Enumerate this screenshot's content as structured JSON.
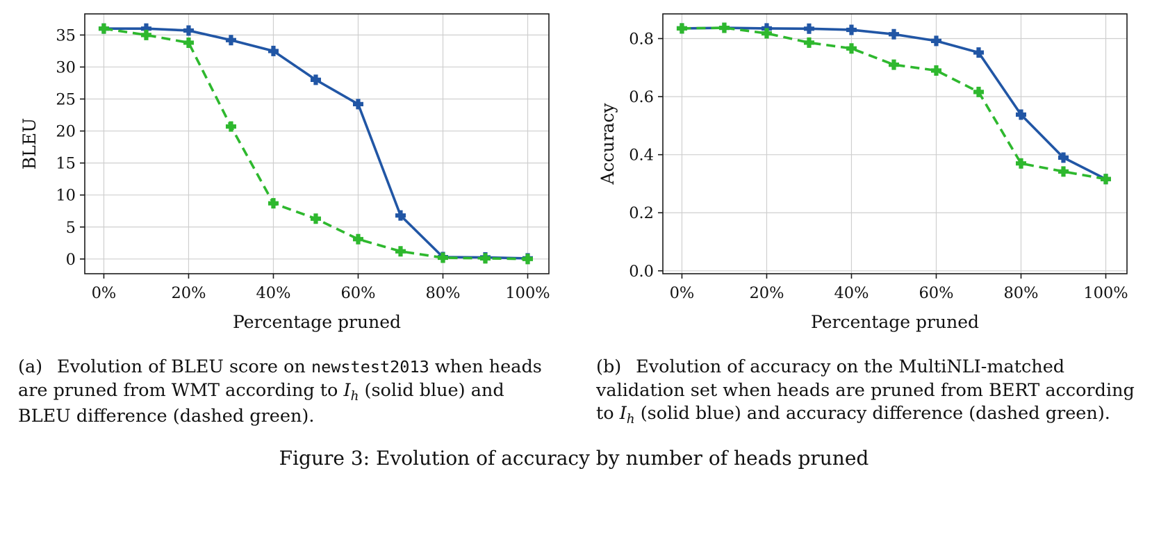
{
  "figure_caption": "Figure 3: Evolution of accuracy by number of heads pruned",
  "captions": {
    "a": [
      {
        "t": "(a)  Evolution of BLEU score on ",
        "s": "n"
      },
      {
        "t": "newstest2013",
        "s": "mono"
      },
      {
        "t": " when heads are pruned from WMT according to ",
        "s": "n"
      },
      {
        "t": "I",
        "s": "i"
      },
      {
        "t": "h",
        "s": "isub"
      },
      {
        "t": " (solid blue) and BLEU difference (dashed green).",
        "s": "n"
      }
    ],
    "b": [
      {
        "t": "(b)  Evolution of accuracy on the MultiNLI-matched validation set when heads are pruned from BERT according to ",
        "s": "n"
      },
      {
        "t": "I",
        "s": "i"
      },
      {
        "t": "h",
        "s": "isub"
      },
      {
        "t": " (solid blue) and accuracy difference (dashed green).",
        "s": "n"
      }
    ]
  },
  "colors": {
    "solid_blue": "#2156a5",
    "dashed_green": "#2eb82e",
    "grid": "#cfcfcf",
    "axis": "#1a1a1a"
  },
  "chart_data": [
    {
      "type": "line",
      "title": "",
      "xlabel": "Percentage pruned",
      "ylabel": "BLEU",
      "grid": true,
      "legend": "none",
      "marker": "plus",
      "x": [
        0,
        10,
        20,
        30,
        40,
        50,
        60,
        70,
        80,
        90,
        100
      ],
      "xticks": [
        0,
        20,
        40,
        60,
        80,
        100
      ],
      "xtick_labels": [
        "0%",
        "20%",
        "40%",
        "60%",
        "80%",
        "100%"
      ],
      "yticks": [
        0,
        5,
        10,
        15,
        20,
        25,
        30,
        35
      ],
      "ytick_labels": [
        "0",
        "5",
        "10",
        "15",
        "20",
        "25",
        "30",
        "35"
      ],
      "xlim": [
        -4.5,
        105
      ],
      "ylim": [
        -2.3,
        38.3
      ],
      "series": [
        {
          "name": "BLEU when heads pruned according to I_h (solid blue)",
          "color": "#2156a5",
          "style": "solid",
          "values": [
            36.0,
            36.0,
            35.7,
            34.2,
            32.5,
            28.0,
            24.2,
            6.8,
            0.3,
            0.25,
            0.1
          ]
        },
        {
          "name": "BLEU difference pruning (dashed green)",
          "color": "#2eb82e",
          "style": "dashed",
          "values": [
            36.0,
            35.0,
            33.8,
            20.7,
            8.7,
            6.3,
            3.1,
            1.2,
            0.2,
            0.1,
            0.0
          ]
        }
      ]
    },
    {
      "type": "line",
      "title": "",
      "xlabel": "Percentage pruned",
      "ylabel": "Accuracy",
      "grid": true,
      "legend": "none",
      "marker": "plus",
      "x": [
        0,
        10,
        20,
        30,
        40,
        50,
        60,
        70,
        80,
        90,
        100
      ],
      "xticks": [
        0,
        20,
        40,
        60,
        80,
        100
      ],
      "xtick_labels": [
        "0%",
        "20%",
        "40%",
        "60%",
        "80%",
        "100%"
      ],
      "yticks": [
        0.0,
        0.2,
        0.4,
        0.6,
        0.8
      ],
      "ytick_labels": [
        "0.0",
        "0.2",
        "0.4",
        "0.6",
        "0.8"
      ],
      "xlim": [
        -4.5,
        105
      ],
      "ylim": [
        -0.01,
        0.885
      ],
      "series": [
        {
          "name": "Accuracy when heads pruned according to I_h (solid blue)",
          "color": "#2156a5",
          "style": "solid",
          "values": [
            0.835,
            0.837,
            0.835,
            0.834,
            0.83,
            0.815,
            0.792,
            0.752,
            0.538,
            0.39,
            0.316
          ]
        },
        {
          "name": "Accuracy difference pruning (dashed green)",
          "color": "#2eb82e",
          "style": "dashed",
          "values": [
            0.835,
            0.837,
            0.818,
            0.786,
            0.766,
            0.71,
            0.69,
            0.616,
            0.37,
            0.342,
            0.316
          ]
        }
      ]
    }
  ]
}
